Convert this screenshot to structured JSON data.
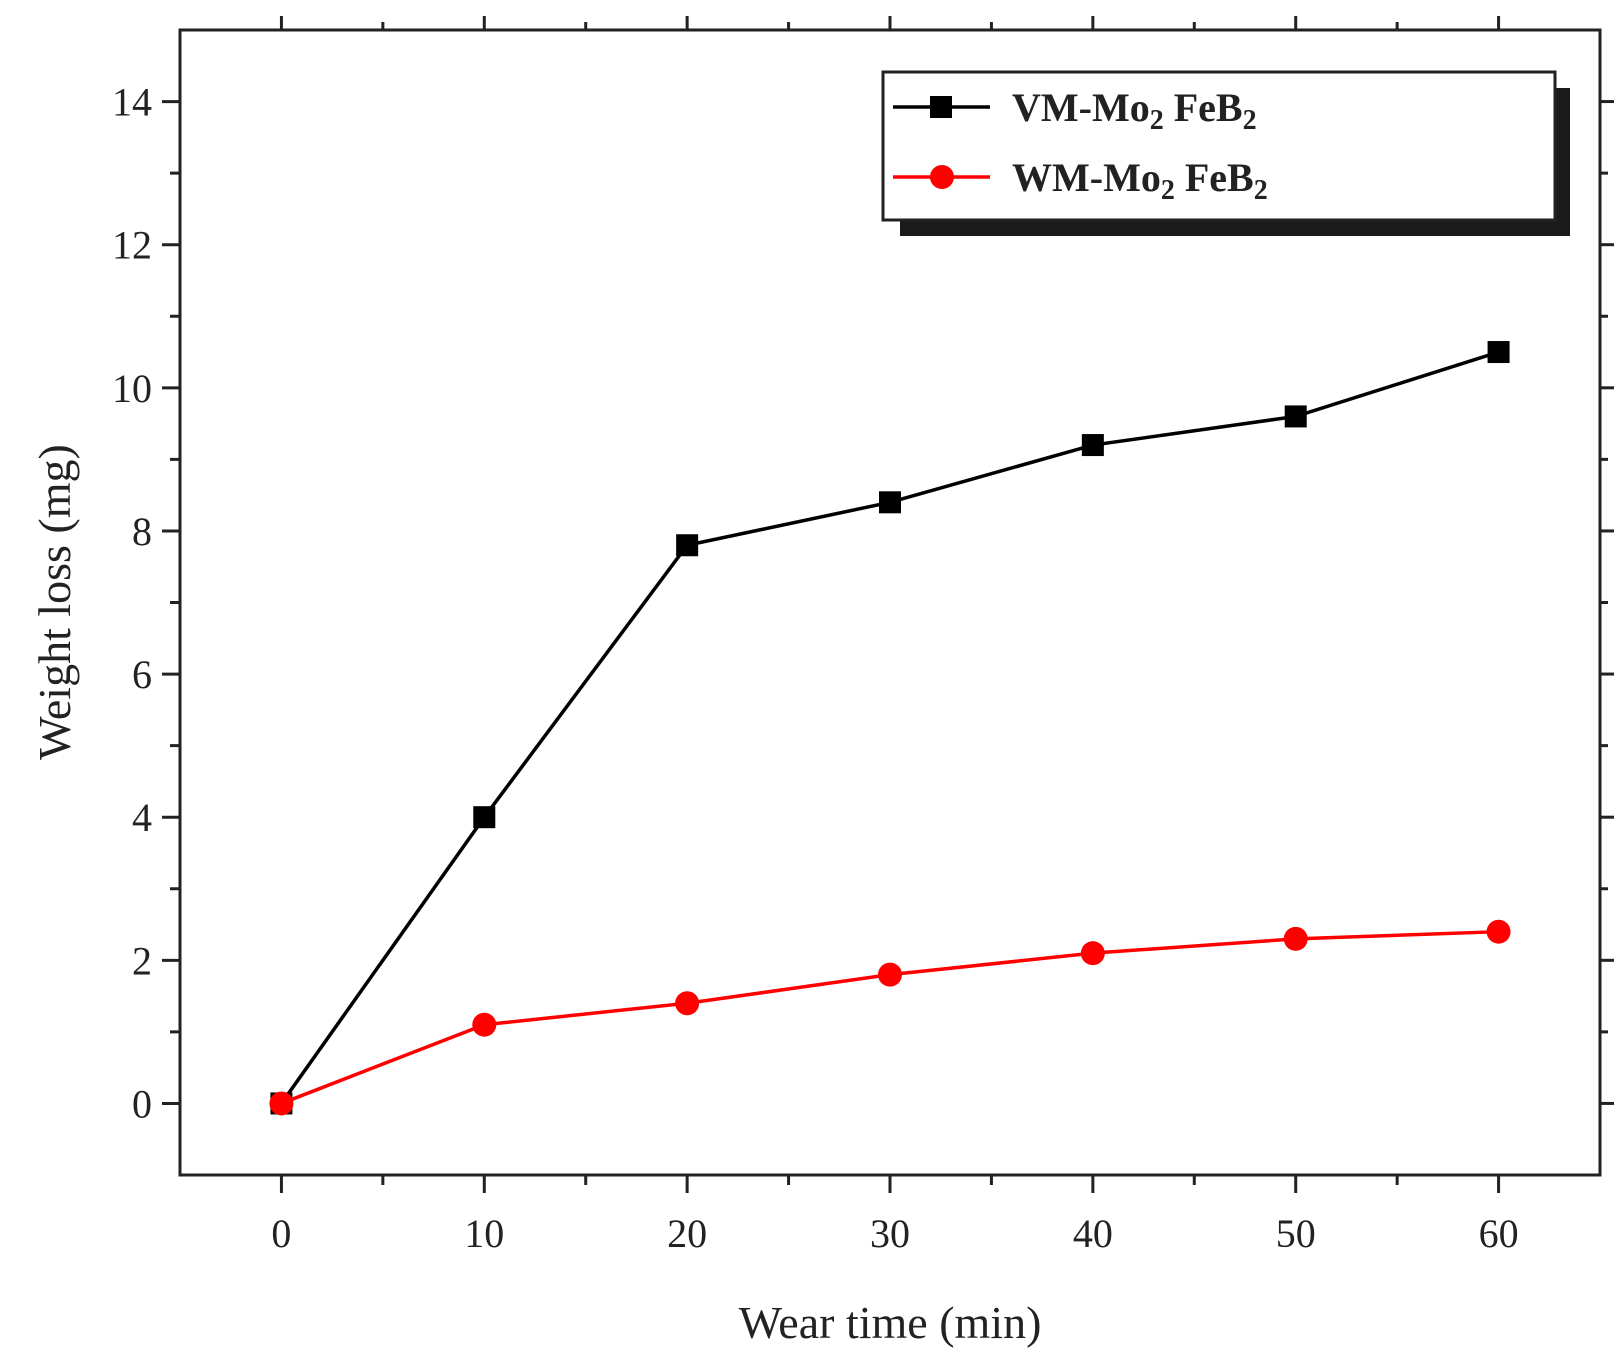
{
  "chart_data": {
    "type": "line",
    "title": "",
    "xlabel": "Wear time (min)",
    "ylabel": "Weight loss (mg)",
    "xlim": [
      -5,
      65
    ],
    "ylim": [
      -1,
      15
    ],
    "xticks": [
      0,
      10,
      20,
      30,
      40,
      50,
      60
    ],
    "yticks": [
      0,
      2,
      4,
      6,
      8,
      10,
      12,
      14
    ],
    "x": [
      0,
      10,
      20,
      30,
      40,
      50,
      60
    ],
    "series": [
      {
        "name": "VM-Mo2 FeB2",
        "legend_main": "VM-Mo",
        "legend_sub1": "2",
        "legend_mid": " FeB",
        "legend_sub2": "2",
        "values": [
          0,
          4.0,
          7.8,
          8.4,
          9.2,
          9.6,
          10.5
        ],
        "color": "#000000",
        "marker": "square"
      },
      {
        "name": "WM-Mo2 FeB2",
        "legend_main": "WM-Mo",
        "legend_sub1": "2",
        "legend_mid": " FeB",
        "legend_sub2": "2",
        "values": [
          0,
          1.1,
          1.4,
          1.8,
          2.1,
          2.3,
          2.4
        ],
        "color": "#ff0000",
        "marker": "circle"
      }
    ],
    "legend": "top-right",
    "grid": false
  }
}
